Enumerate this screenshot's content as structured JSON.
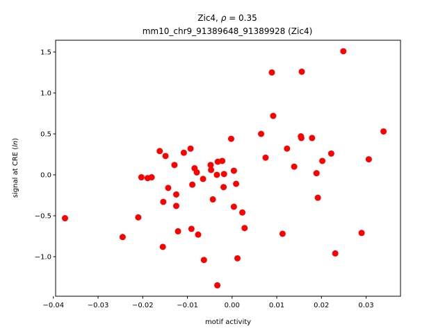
{
  "chart_data": {
    "type": "scatter",
    "title_line1_prefix": "Zic4, ",
    "title_rho_symbol": "ρ",
    "title_rho_value": " = 0.35",
    "title_line2": "mm10_chr9_91389648_91389928 (Zic4)",
    "xlabel": "motif activity",
    "ylabel_prefix": "signal at CRE (",
    "ylabel_italic": "ln",
    "ylabel_suffix": ")",
    "xlim": [
      -0.0395,
      0.0377
    ],
    "ylim": [
      -1.483,
      1.644
    ],
    "xticks": [
      -0.04,
      -0.03,
      -0.02,
      -0.01,
      0.0,
      0.01,
      0.02,
      0.03
    ],
    "xtick_labels": [
      "−0.04",
      "−0.03",
      "−0.02",
      "−0.01",
      "0.00",
      "0.01",
      "0.02",
      "0.03"
    ],
    "yticks": [
      -1.0,
      -0.5,
      0.0,
      0.5,
      1.0,
      1.5
    ],
    "ytick_labels": [
      "−1.0",
      "−0.5",
      "0.0",
      "0.5",
      "1.0",
      "1.5"
    ],
    "marker_color": "#ff0000",
    "grid": false,
    "points": [
      [
        -0.0374,
        -0.53
      ],
      [
        -0.0245,
        -0.76
      ],
      [
        -0.021,
        -0.52
      ],
      [
        -0.0203,
        -0.03
      ],
      [
        -0.0189,
        -0.04
      ],
      [
        -0.018,
        -0.03
      ],
      [
        -0.0162,
        0.29
      ],
      [
        -0.0155,
        -0.88
      ],
      [
        -0.0154,
        -0.33
      ],
      [
        -0.0149,
        0.23
      ],
      [
        -0.0143,
        -0.16
      ],
      [
        -0.0129,
        0.12
      ],
      [
        -0.0125,
        -0.24
      ],
      [
        -0.0125,
        -0.38
      ],
      [
        -0.0121,
        -0.69
      ],
      [
        -0.0108,
        0.27
      ],
      [
        -0.0093,
        0.32
      ],
      [
        -0.0091,
        -0.66
      ],
      [
        -0.0089,
        -0.12
      ],
      [
        -0.0084,
        0.08
      ],
      [
        -0.0079,
        0.03
      ],
      [
        -0.0076,
        -0.73
      ],
      [
        -0.0065,
        -0.05
      ],
      [
        -0.0063,
        -1.04
      ],
      [
        -0.0048,
        0.12
      ],
      [
        -0.0047,
        0.06
      ],
      [
        -0.0043,
        -0.3
      ],
      [
        -0.0034,
        0.0
      ],
      [
        -0.0032,
        0.16
      ],
      [
        -0.0033,
        -1.35
      ],
      [
        -0.0022,
        0.17
      ],
      [
        -0.0019,
        -0.15
      ],
      [
        -0.0018,
        0.01
      ],
      [
        -0.0002,
        0.44
      ],
      [
        0.0004,
        0.05
      ],
      [
        0.0004,
        -0.39
      ],
      [
        0.0009,
        -0.11
      ],
      [
        0.0012,
        -1.02
      ],
      [
        0.0023,
        -0.46
      ],
      [
        0.0028,
        -0.65
      ],
      [
        0.0065,
        0.5
      ],
      [
        0.0075,
        0.21
      ],
      [
        0.0089,
        1.25
      ],
      [
        0.0092,
        0.72
      ],
      [
        0.0113,
        -0.72
      ],
      [
        0.0123,
        0.32
      ],
      [
        0.0139,
        0.1
      ],
      [
        0.0154,
        0.47
      ],
      [
        0.0155,
        0.45
      ],
      [
        0.0156,
        1.26
      ],
      [
        0.0179,
        0.45
      ],
      [
        0.0189,
        0.02
      ],
      [
        0.0192,
        -0.28
      ],
      [
        0.0202,
        0.17
      ],
      [
        0.0222,
        0.26
      ],
      [
        0.0231,
        -0.96
      ],
      [
        0.0249,
        1.51
      ],
      [
        0.029,
        -0.71
      ],
      [
        0.0306,
        0.19
      ],
      [
        0.0339,
        0.53
      ]
    ]
  }
}
